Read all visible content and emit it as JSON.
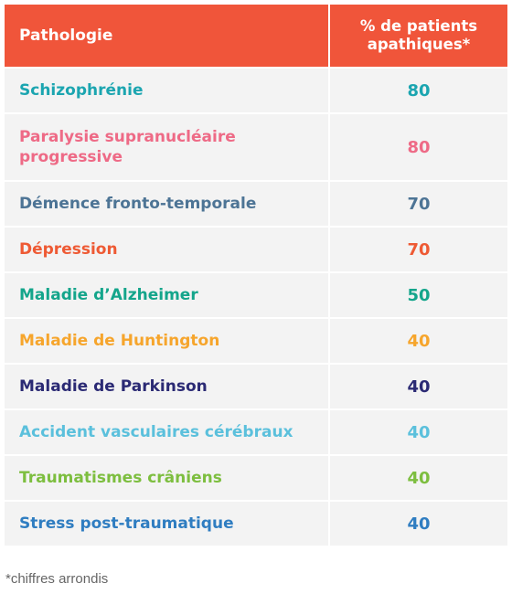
{
  "header": {
    "col_pathology": "Pathologie",
    "col_percent": "% de patients apathiques*"
  },
  "rows": [
    {
      "name": "Schizophrénie",
      "value": "80",
      "color": "#1ba5b0"
    },
    {
      "name": "Paralysie supranucléaire progressive",
      "value": "80",
      "color": "#ee6a86"
    },
    {
      "name": "Démence fronto-temporale",
      "value": "70",
      "color": "#4d7495"
    },
    {
      "name": "Dépression",
      "value": "70",
      "color": "#ee5a34"
    },
    {
      "name": "Maladie d’Alzheimer",
      "value": "50",
      "color": "#14a58b"
    },
    {
      "name": "Maladie de Huntington",
      "value": "40",
      "color": "#f6a52c"
    },
    {
      "name": "Maladie de Parkinson",
      "value": "40",
      "color": "#2b2a74"
    },
    {
      "name": "Accident vasculaires cérébraux",
      "value": "40",
      "color": "#5bc0dc"
    },
    {
      "name": "Traumatismes crâniens",
      "value": "40",
      "color": "#7dbe3f"
    },
    {
      "name": "Stress post-traumatique",
      "value": "40",
      "color": "#2f7dc1"
    }
  ],
  "footnote": "*chiffres arrondis",
  "colors": {
    "header_bg": "#f0553a",
    "row_bg": "#f3f3f3"
  }
}
